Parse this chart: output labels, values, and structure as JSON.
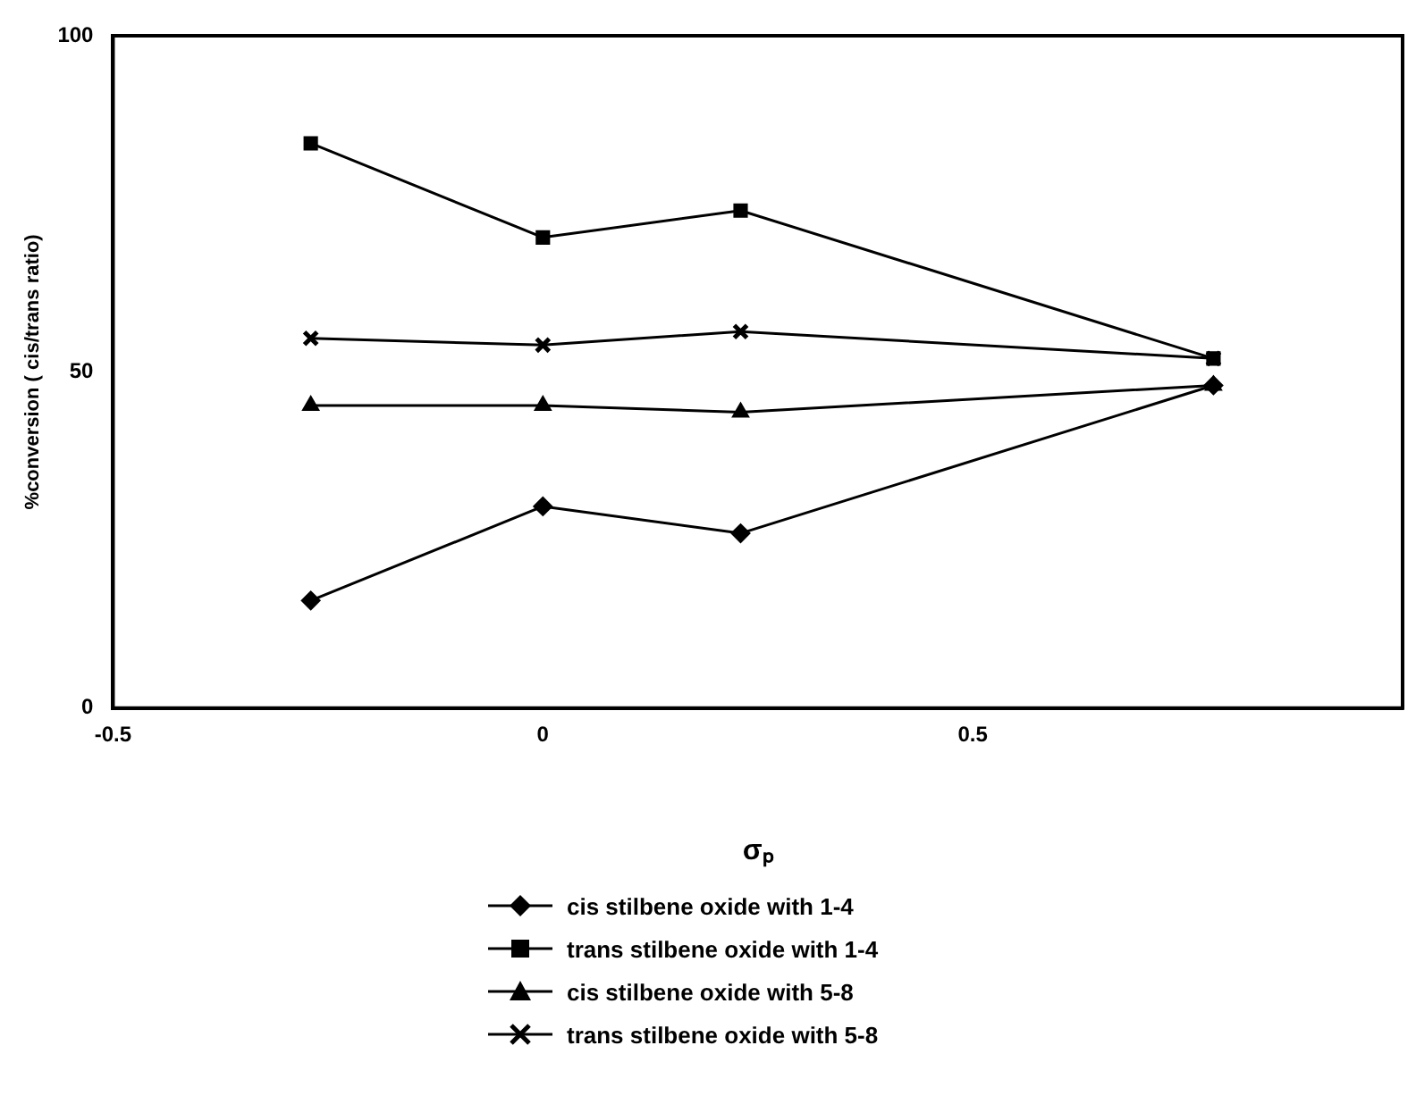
{
  "chart_data": {
    "type": "line",
    "xlabel": "σₚ",
    "ylabel": "%conversion ( cis/trans ratio)",
    "x": [
      -0.27,
      0,
      0.23,
      0.78
    ],
    "xlim": [
      -0.5,
      1.0
    ],
    "xticks": [
      -0.5,
      0,
      0.5
    ],
    "ylim": [
      0,
      100
    ],
    "yticks": [
      0,
      50,
      100
    ],
    "grid": false,
    "legend": "bottom",
    "line_style": "solid",
    "series": [
      {
        "name": "cis stilbene oxide with 1-4",
        "color": "#000000",
        "marker": "diamond",
        "values": [
          16,
          30,
          26,
          48
        ]
      },
      {
        "name": "trans stilbene oxide with 1-4",
        "color": "#000000",
        "marker": "square",
        "values": [
          84,
          70,
          74,
          52
        ]
      },
      {
        "name": "cis stilbene oxide with 5-8",
        "color": "#000000",
        "marker": "triangle",
        "values": [
          45,
          45,
          44,
          48
        ]
      },
      {
        "name": "trans stilbene oxide with 5-8",
        "color": "#000000",
        "marker": "cross",
        "values": [
          55,
          54,
          56,
          52
        ]
      }
    ]
  }
}
